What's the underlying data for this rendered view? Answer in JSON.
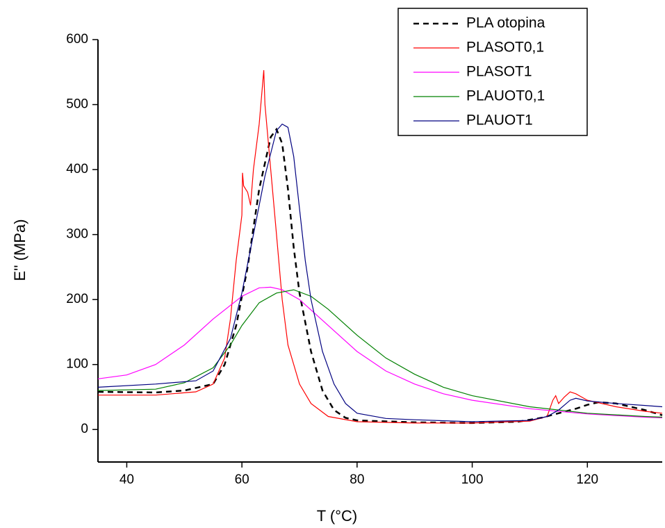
{
  "chart_data": {
    "type": "line",
    "x_label": "T (°C)",
    "y_label": "E'' (MPa)",
    "xlim": [
      35,
      133
    ],
    "ylim": [
      -50,
      600
    ],
    "xticks": [
      40,
      60,
      80,
      100,
      120
    ],
    "yticks": [
      0,
      100,
      200,
      300,
      400,
      500,
      600
    ],
    "legend": "top-right",
    "series": [
      {
        "name": "PLA otopina",
        "color": "#000000",
        "dashed": true,
        "x": [
          35,
          45,
          50,
          55,
          57,
          59,
          61,
          63,
          65,
          66,
          67,
          68,
          69,
          70,
          72,
          74,
          76,
          78,
          80,
          90,
          100,
          108,
          112,
          115,
          118,
          120,
          122,
          125,
          130,
          133
        ],
        "values": [
          58,
          57,
          60,
          70,
          100,
          160,
          250,
          370,
          450,
          462,
          440,
          370,
          280,
          210,
          120,
          60,
          30,
          18,
          14,
          11,
          10,
          12,
          18,
          25,
          32,
          38,
          42,
          40,
          30,
          22
        ]
      },
      {
        "name": "PLASOT0,1",
        "color": "#ff0000",
        "dashed": false,
        "x": [
          35,
          45,
          52,
          55,
          57,
          58,
          59,
          60,
          60.1,
          60.3,
          61,
          61.5,
          62,
          63,
          63.8,
          64,
          65,
          66,
          67,
          68,
          70,
          72,
          75,
          80,
          90,
          100,
          110,
          113,
          114,
          114.5,
          115,
          116,
          117,
          118,
          120,
          125,
          130,
          133
        ],
        "values": [
          53,
          53,
          58,
          70,
          110,
          170,
          260,
          330,
          395,
          375,
          365,
          345,
          400,
          470,
          553,
          500,
          400,
          300,
          200,
          130,
          70,
          40,
          20,
          12,
          10,
          10,
          13,
          20,
          45,
          52,
          40,
          50,
          58,
          55,
          45,
          35,
          28,
          25
        ]
      },
      {
        "name": "PLASOT1",
        "color": "#ff00ff",
        "dashed": false,
        "x": [
          35,
          40,
          45,
          50,
          55,
          60,
          63,
          65,
          67,
          70,
          75,
          80,
          85,
          90,
          95,
          100,
          110,
          120,
          130,
          133
        ],
        "values": [
          78,
          84,
          100,
          130,
          170,
          205,
          218,
          219,
          215,
          200,
          160,
          120,
          90,
          70,
          55,
          45,
          32,
          24,
          19,
          18
        ]
      },
      {
        "name": "PLAUOT0,1",
        "color": "#008000",
        "dashed": false,
        "x": [
          35,
          45,
          50,
          55,
          58,
          60,
          63,
          66,
          69,
          72,
          75,
          80,
          85,
          90,
          95,
          100,
          110,
          120,
          130,
          133
        ],
        "values": [
          60,
          62,
          72,
          95,
          130,
          160,
          195,
          210,
          215,
          205,
          185,
          145,
          110,
          85,
          65,
          52,
          35,
          25,
          20,
          19
        ]
      },
      {
        "name": "PLAUOT1",
        "color": "#000080",
        "dashed": false,
        "x": [
          35,
          45,
          52,
          55,
          58,
          60,
          62,
          64,
          66,
          67,
          68,
          69,
          70,
          71,
          72,
          74,
          76,
          78,
          80,
          85,
          90,
          100,
          110,
          113,
          115,
          117,
          118,
          120,
          125,
          130,
          133
        ],
        "values": [
          65,
          70,
          75,
          90,
          140,
          210,
          300,
          390,
          460,
          470,
          465,
          420,
          340,
          260,
          200,
          120,
          70,
          40,
          25,
          17,
          15,
          12,
          14,
          20,
          30,
          45,
          48,
          44,
          40,
          37,
          35
        ]
      }
    ]
  }
}
